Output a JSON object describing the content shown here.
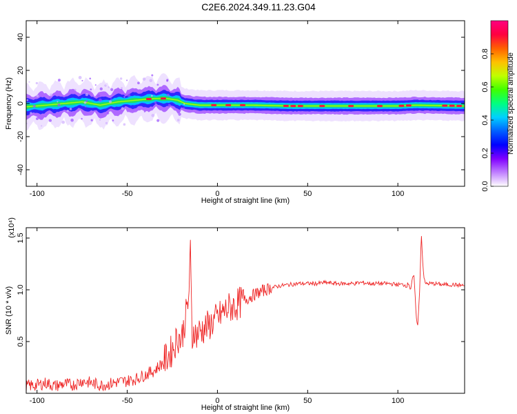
{
  "page": {
    "title": "C2E6.2024.349.11.23.G04"
  },
  "chart_data": [
    {
      "type": "heatmap",
      "xlabel": "Height of straight line (km)",
      "ylabel": "Frequency (Hz)",
      "xlim": [
        -106,
        137
      ],
      "ylim": [
        -50,
        50
      ],
      "xticks": [
        -100,
        -50,
        0,
        50,
        100
      ],
      "yticks": [
        -40,
        -20,
        0,
        20,
        40
      ],
      "colorbar": {
        "label": "Normalized spectral amplitude",
        "range": [
          0,
          1
        ],
        "ticks": [
          "0.0",
          "0.2",
          "0.4",
          "0.6",
          "0.8"
        ],
        "tick_values": [
          0.0,
          0.2,
          0.4,
          0.6,
          0.8
        ],
        "colors": [
          "#ffffff",
          "#c080ff",
          "#8000ff",
          "#0000ff",
          "#0060ff",
          "#00d0ff",
          "#00ff80",
          "#40ff00",
          "#c0ff00",
          "#ffc000",
          "#ff6000",
          "#ff0040",
          "#ff0080"
        ]
      },
      "trace": {
        "x": [
          -106,
          -95,
          -85,
          -75,
          -65,
          -55,
          -45,
          -35,
          -28,
          -22,
          -18,
          -10,
          0,
          10,
          20,
          40,
          60,
          80,
          100,
          110,
          137
        ],
        "y": [
          -2,
          -1,
          0,
          1,
          -1,
          1,
          2,
          3,
          3,
          2,
          0,
          -1,
          -1,
          -1,
          -1,
          -1.5,
          -1.5,
          -1.5,
          -1.5,
          -1,
          -1.5
        ]
      }
    },
    {
      "type": "line",
      "xlabel": "Height of straight line (km)",
      "ylabel": "SNR (10 * v/v)",
      "y_multiplier": "(x10⁴)",
      "xlim": [
        -106,
        137
      ],
      "ylim": [
        0,
        1.6
      ],
      "xticks": [
        -100,
        -50,
        0,
        50,
        100
      ],
      "yticks": [
        0.5,
        1.0,
        1.5
      ],
      "ytick_labels": [
        "0.5",
        "1.0",
        "1.5"
      ],
      "color": "#ee2222",
      "series": [
        {
          "x": [
            -106,
            -100,
            -95,
            -90,
            -85,
            -80,
            -75,
            -70,
            -65,
            -60,
            -55,
            -50,
            -45,
            -40,
            -35,
            -30,
            -25,
            -22,
            -20,
            -18,
            -16,
            -15,
            -14,
            -13,
            -12,
            -10,
            -8,
            -5,
            -2,
            0,
            3,
            6,
            10,
            15,
            20,
            25,
            30,
            35,
            40,
            45,
            50,
            55,
            60,
            65,
            70,
            75,
            80,
            85,
            90,
            95,
            100,
            103,
            105,
            106,
            107,
            108,
            109,
            110,
            111,
            112,
            113,
            114,
            115,
            117,
            120,
            125,
            130,
            137
          ],
          "values": [
            0.07,
            0.08,
            0.1,
            0.07,
            0.09,
            0.08,
            0.12,
            0.1,
            0.08,
            0.09,
            0.11,
            0.12,
            0.14,
            0.18,
            0.22,
            0.3,
            0.42,
            0.55,
            0.52,
            0.7,
            0.9,
            1.35,
            0.5,
            0.65,
            0.55,
            0.6,
            0.62,
            0.65,
            0.7,
            0.72,
            0.78,
            0.82,
            0.85,
            0.9,
            0.95,
            0.99,
            1.02,
            1.04,
            1.05,
            1.06,
            1.06,
            1.06,
            1.07,
            1.06,
            1.06,
            1.06,
            1.07,
            1.06,
            1.06,
            1.06,
            1.05,
            1.05,
            1.04,
            1.07,
            1.0,
            1.1,
            1.13,
            0.78,
            0.65,
            0.95,
            1.55,
            1.2,
            1.06,
            1.06,
            1.06,
            1.05,
            1.05,
            1.04
          ]
        }
      ]
    }
  ]
}
